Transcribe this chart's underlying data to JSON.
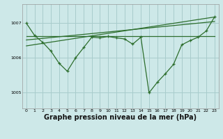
{
  "bg_color": "#cde8e8",
  "grid_color": "#a8cccc",
  "line_color": "#2d6e2d",
  "xlabel": "Graphe pression niveau de la mer (hPa)",
  "xlabel_fontsize": 7,
  "xlim": [
    -0.5,
    23.5
  ],
  "ylim": [
    1004.55,
    1007.55
  ],
  "yticks": [
    1005,
    1006,
    1007
  ],
  "xticks": [
    0,
    1,
    2,
    3,
    4,
    5,
    6,
    7,
    8,
    9,
    10,
    11,
    12,
    13,
    14,
    15,
    16,
    17,
    18,
    19,
    20,
    21,
    22,
    23
  ],
  "series_main": {
    "x": [
      0,
      1,
      2,
      3,
      4,
      5,
      6,
      7,
      8,
      9,
      10,
      11,
      12,
      13,
      14,
      15,
      16,
      17,
      18,
      19,
      20,
      21,
      22,
      23
    ],
    "y": [
      1007.0,
      1006.65,
      1006.45,
      1006.2,
      1005.85,
      1005.62,
      1006.0,
      1006.3,
      1006.6,
      1006.58,
      1006.62,
      1006.58,
      1006.55,
      1006.4,
      1006.6,
      1005.0,
      1005.3,
      1005.55,
      1005.82,
      1006.38,
      1006.5,
      1006.6,
      1006.78,
      1007.18
    ]
  },
  "series_flat": {
    "x": [
      0,
      23
    ],
    "y": [
      1006.62,
      1006.62
    ]
  },
  "series_rise1": {
    "x": [
      0,
      23
    ],
    "y": [
      1006.52,
      1007.05
    ]
  },
  "series_rise2": {
    "x": [
      0,
      23
    ],
    "y": [
      1006.35,
      1007.18
    ]
  }
}
